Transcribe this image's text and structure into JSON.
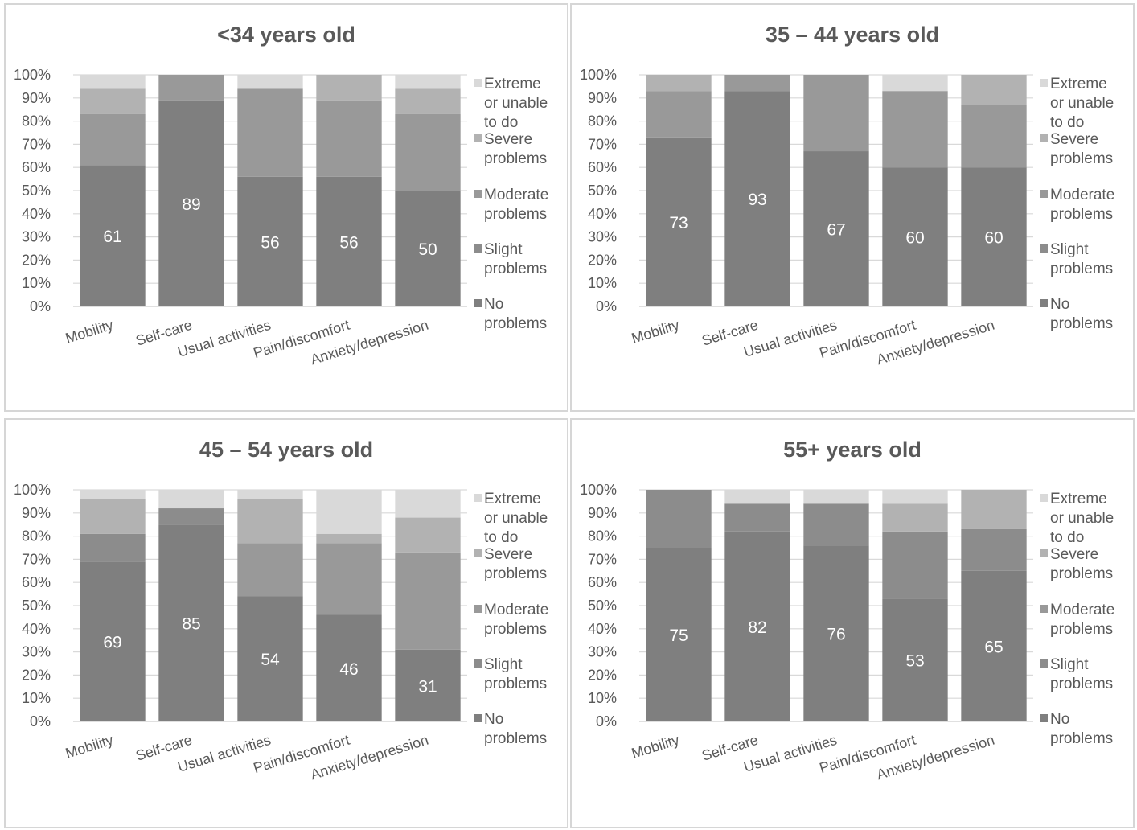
{
  "colors": {
    "no_problems": "#7f7f7f",
    "slight_problems": "#8c8c8c",
    "moderate_problems": "#999999",
    "severe_problems": "#b2b2b2",
    "extreme_problems": "#d9d9d9",
    "text": "#595959",
    "gridline": "#d9d9d9",
    "data_label": "#ffffff"
  },
  "chart_data": [
    {
      "type": "bar",
      "stacked": true,
      "title": "<34 years old",
      "categories": [
        "Mobility",
        "Self-care",
        "Usual activities",
        "Pain/discomfort",
        "Anxiety/depression"
      ],
      "y_ticks": [
        "0%",
        "10%",
        "20%",
        "30%",
        "40%",
        "50%",
        "60%",
        "70%",
        "80%",
        "90%",
        "100%"
      ],
      "ylim": [
        0,
        100
      ],
      "legend_position": "right",
      "series": [
        {
          "name": "No problems",
          "values": [
            61,
            89,
            56,
            56,
            50
          ],
          "labels": [
            "61",
            "89",
            "56",
            "56",
            "50"
          ]
        },
        {
          "name": "Slight problems",
          "values": [
            0,
            0,
            0,
            0,
            0
          ]
        },
        {
          "name": "Moderate problems",
          "values": [
            22,
            11,
            38,
            33,
            33
          ]
        },
        {
          "name": "Severe problems",
          "values": [
            11,
            0,
            0,
            11,
            11
          ]
        },
        {
          "name": "Extreme or unable to do",
          "values": [
            6,
            0,
            6,
            0,
            6
          ]
        }
      ]
    },
    {
      "type": "bar",
      "stacked": true,
      "title": "35 – 44 years old",
      "categories": [
        "Mobility",
        "Self-care",
        "Usual activities",
        "Pain/discomfort",
        "Anxiety/depression"
      ],
      "y_ticks": [
        "0%",
        "10%",
        "20%",
        "30%",
        "40%",
        "50%",
        "60%",
        "70%",
        "80%",
        "90%",
        "100%"
      ],
      "ylim": [
        0,
        100
      ],
      "legend_position": "right",
      "series": [
        {
          "name": "No problems",
          "values": [
            73,
            93,
            67,
            60,
            60
          ],
          "labels": [
            "73",
            "93",
            "67",
            "60",
            "60"
          ]
        },
        {
          "name": "Slight problems",
          "values": [
            0,
            0,
            0,
            0,
            0
          ]
        },
        {
          "name": "Moderate problems",
          "values": [
            20,
            7,
            33,
            33,
            27
          ]
        },
        {
          "name": "Severe problems",
          "values": [
            7,
            0,
            0,
            0,
            13
          ]
        },
        {
          "name": "Extreme or unable to do",
          "values": [
            0,
            0,
            0,
            7,
            0
          ]
        }
      ]
    },
    {
      "type": "bar",
      "stacked": true,
      "title": "45 – 54 years old",
      "categories": [
        "Mobility",
        "Self-care",
        "Usual activities",
        "Pain/discomfort",
        "Anxiety/depression"
      ],
      "y_ticks": [
        "0%",
        "10%",
        "20%",
        "30%",
        "40%",
        "50%",
        "60%",
        "70%",
        "80%",
        "90%",
        "100%"
      ],
      "ylim": [
        0,
        100
      ],
      "legend_position": "right",
      "series": [
        {
          "name": "No problems",
          "values": [
            69,
            85,
            54,
            46,
            31
          ],
          "labels": [
            "69",
            "85",
            "54",
            "46",
            "31"
          ]
        },
        {
          "name": "Slight problems",
          "values": [
            12,
            7,
            0,
            0,
            0
          ]
        },
        {
          "name": "Moderate problems",
          "values": [
            0,
            0,
            23,
            31,
            42
          ]
        },
        {
          "name": "Severe problems",
          "values": [
            15,
            0,
            19,
            4,
            15
          ]
        },
        {
          "name": "Extreme or unable to do",
          "values": [
            4,
            8,
            4,
            19,
            12
          ]
        }
      ]
    },
    {
      "type": "bar",
      "stacked": true,
      "title": "55+ years old",
      "categories": [
        "Mobility",
        "Self-care",
        "Usual activities",
        "Pain/discomfort",
        "Anxiety/depression"
      ],
      "y_ticks": [
        "0%",
        "10%",
        "20%",
        "30%",
        "40%",
        "50%",
        "60%",
        "70%",
        "80%",
        "90%",
        "100%"
      ],
      "ylim": [
        0,
        100
      ],
      "legend_position": "right",
      "series": [
        {
          "name": "No problems",
          "values": [
            75,
            82,
            76,
            53,
            65
          ],
          "labels": [
            "75",
            "82",
            "76",
            "53",
            "65"
          ]
        },
        {
          "name": "Slight problems",
          "values": [
            25,
            12,
            18,
            29,
            18
          ]
        },
        {
          "name": "Moderate problems",
          "values": [
            0,
            0,
            0,
            0,
            0
          ]
        },
        {
          "name": "Severe problems",
          "values": [
            0,
            0,
            0,
            12,
            17
          ]
        },
        {
          "name": "Extreme or unable to do",
          "values": [
            0,
            6,
            6,
            6,
            0
          ]
        }
      ]
    }
  ],
  "legend": {
    "entries": [
      {
        "lines": [
          "Extreme",
          "or unable",
          "to do"
        ],
        "color_key": "extreme_problems"
      },
      {
        "lines": [
          "Severe",
          "problems"
        ],
        "color_key": "severe_problems"
      },
      {
        "lines": [
          "Moderate",
          "problems"
        ],
        "color_key": "moderate_problems"
      },
      {
        "lines": [
          "Slight",
          "problems"
        ],
        "color_key": "slight_problems"
      },
      {
        "lines": [
          "No",
          "problems"
        ],
        "color_key": "no_problems"
      }
    ]
  }
}
